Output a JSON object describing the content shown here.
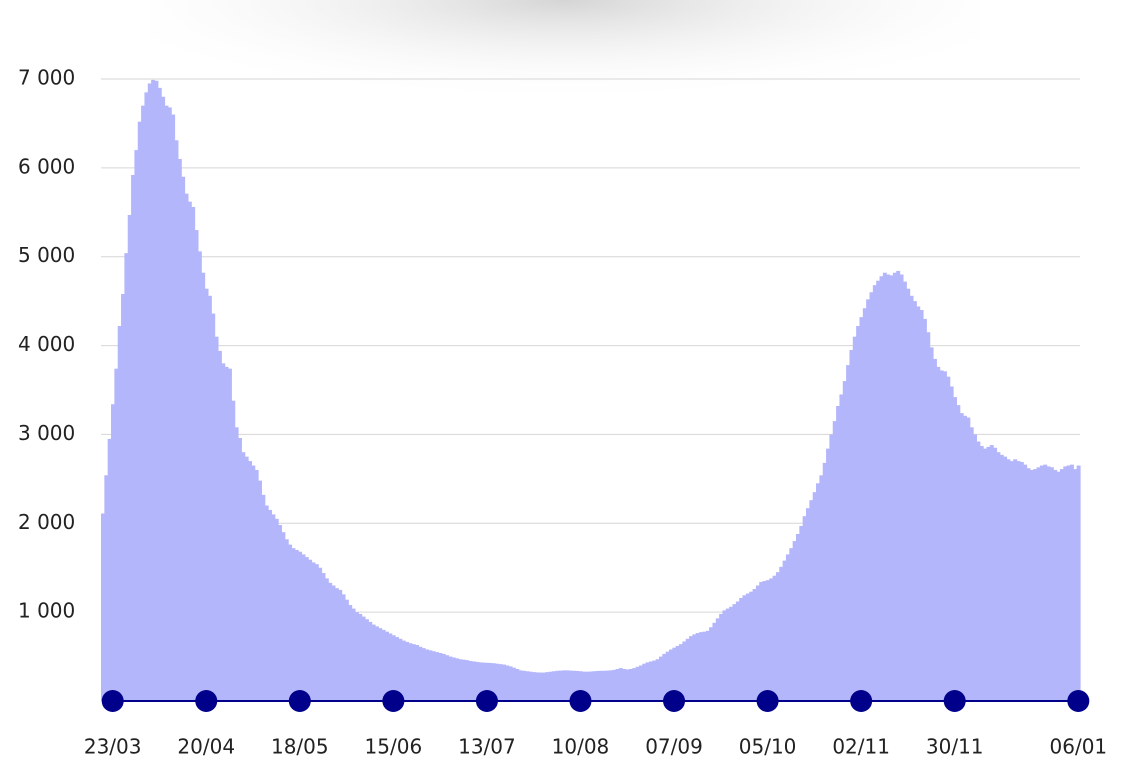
{
  "chart_data": {
    "type": "bar",
    "color": "#b4b6fc",
    "axis_color": "#00008b",
    "grid": true,
    "ylim": [
      0,
      7000
    ],
    "yticks": [
      {
        "value": 1000,
        "label": "1 000"
      },
      {
        "value": 2000,
        "label": "2 000"
      },
      {
        "value": 3000,
        "label": "3 000"
      },
      {
        "value": 4000,
        "label": "4 000"
      },
      {
        "value": 5000,
        "label": "5 000"
      },
      {
        "value": 6000,
        "label": "6 000"
      },
      {
        "value": 7000,
        "label": "7 000"
      }
    ],
    "categories": [
      null,
      null,
      null,
      "23/03",
      null,
      null,
      null,
      null,
      null,
      null,
      null,
      null,
      null,
      null,
      null,
      null,
      null,
      null,
      null,
      null,
      null,
      null,
      null,
      null,
      null,
      null,
      null,
      null,
      null,
      null,
      null,
      "20/04",
      null,
      null,
      null,
      null,
      null,
      null,
      null,
      null,
      null,
      null,
      null,
      null,
      null,
      null,
      null,
      null,
      null,
      null,
      null,
      null,
      null,
      null,
      null,
      null,
      null,
      null,
      null,
      "18/05",
      null,
      null,
      null,
      null,
      null,
      null,
      null,
      null,
      null,
      null,
      null,
      null,
      null,
      null,
      null,
      null,
      null,
      null,
      null,
      null,
      null,
      null,
      null,
      null,
      null,
      null,
      null,
      "15/06",
      null,
      null,
      null,
      null,
      null,
      null,
      null,
      null,
      null,
      null,
      null,
      null,
      null,
      null,
      null,
      null,
      null,
      null,
      null,
      null,
      null,
      null,
      null,
      null,
      null,
      null,
      null,
      "13/07",
      null,
      null,
      null,
      null,
      null,
      null,
      null,
      null,
      null,
      null,
      null,
      null,
      null,
      null,
      null,
      null,
      null,
      null,
      null,
      null,
      null,
      null,
      null,
      null,
      null,
      null,
      null,
      "10/08",
      null,
      null,
      null,
      null,
      null,
      null,
      null,
      null,
      null,
      null,
      null,
      null,
      null,
      null,
      null,
      null,
      null,
      null,
      null,
      null,
      null,
      null,
      null,
      null,
      null,
      null,
      null,
      "07/09",
      null,
      null,
      null,
      null,
      null,
      null,
      null,
      null,
      null,
      null,
      null,
      null,
      null,
      null,
      null,
      null,
      null,
      null,
      null,
      null,
      null,
      null,
      null,
      null,
      null,
      null,
      null,
      "05/10",
      null,
      null,
      null,
      null,
      null,
      null,
      null,
      null,
      null,
      null,
      null,
      null,
      null,
      null,
      null,
      null,
      null,
      null,
      null,
      null,
      null,
      null,
      null,
      null,
      null,
      null,
      null,
      "02/11",
      null,
      null,
      null,
      null,
      null,
      null,
      null,
      null,
      null,
      null,
      null,
      null,
      null,
      null,
      null,
      null,
      null,
      null,
      null,
      null,
      null,
      null,
      null,
      null,
      null,
      null,
      null,
      "30/11",
      null,
      null,
      null,
      null,
      null,
      null,
      null,
      null,
      null,
      null,
      null,
      null,
      null,
      null,
      null,
      null,
      null,
      null,
      null,
      null,
      null,
      null,
      null,
      null,
      null,
      null,
      null,
      null,
      null,
      null,
      null,
      null,
      null,
      null,
      null,
      null,
      "06/01"
    ],
    "values": [
      2110,
      2540,
      2950,
      3340,
      3740,
      4220,
      4580,
      5040,
      5470,
      5920,
      6200,
      6520,
      6700,
      6850,
      6950,
      6990,
      6980,
      6900,
      6800,
      6700,
      6680,
      6600,
      6310,
      6100,
      5900,
      5710,
      5620,
      5560,
      5300,
      5060,
      4820,
      4640,
      4560,
      4360,
      4100,
      3940,
      3800,
      3760,
      3740,
      3380,
      3080,
      2960,
      2800,
      2750,
      2700,
      2650,
      2600,
      2480,
      2320,
      2200,
      2150,
      2100,
      2050,
      1980,
      1900,
      1820,
      1760,
      1720,
      1700,
      1680,
      1650,
      1620,
      1590,
      1560,
      1540,
      1500,
      1440,
      1380,
      1330,
      1300,
      1270,
      1250,
      1200,
      1140,
      1080,
      1040,
      1000,
      980,
      950,
      920,
      890,
      860,
      840,
      820,
      800,
      780,
      760,
      740,
      720,
      700,
      680,
      665,
      650,
      640,
      630,
      610,
      595,
      580,
      570,
      560,
      550,
      540,
      530,
      515,
      500,
      490,
      480,
      470,
      465,
      460,
      450,
      445,
      440,
      435,
      432,
      430,
      428,
      425,
      420,
      415,
      410,
      400,
      390,
      375,
      360,
      345,
      340,
      335,
      330,
      325,
      322,
      320,
      320,
      325,
      330,
      335,
      340,
      342,
      345,
      345,
      342,
      340,
      338,
      335,
      330,
      330,
      332,
      335,
      338,
      340,
      340,
      342,
      345,
      350,
      360,
      370,
      360,
      355,
      360,
      370,
      385,
      400,
      420,
      435,
      445,
      455,
      470,
      500,
      530,
      555,
      580,
      600,
      620,
      640,
      670,
      700,
      730,
      750,
      765,
      775,
      780,
      790,
      830,
      880,
      930,
      980,
      1020,
      1040,
      1060,
      1090,
      1120,
      1160,
      1190,
      1210,
      1230,
      1260,
      1300,
      1340,
      1350,
      1360,
      1380,
      1410,
      1450,
      1510,
      1580,
      1650,
      1720,
      1800,
      1880,
      1970,
      2080,
      2170,
      2260,
      2350,
      2450,
      2540,
      2680,
      2840,
      3000,
      3150,
      3320,
      3450,
      3600,
      3780,
      3950,
      4100,
      4220,
      4320,
      4420,
      4520,
      4600,
      4680,
      4730,
      4780,
      4820,
      4800,
      4790,
      4820,
      4840,
      4800,
      4720,
      4640,
      4560,
      4500,
      4440,
      4400,
      4300,
      4150,
      3980,
      3850,
      3760,
      3720,
      3710,
      3650,
      3540,
      3420,
      3330,
      3240,
      3210,
      3190,
      3080,
      3000,
      2920,
      2870,
      2840,
      2860,
      2880,
      2850,
      2800,
      2770,
      2750,
      2720,
      2700,
      2720,
      2700,
      2690,
      2660,
      2620,
      2600,
      2610,
      2630,
      2650,
      2660,
      2640,
      2630,
      2600,
      2580,
      2610,
      2640,
      2650,
      2660,
      2610,
      2650
    ]
  }
}
